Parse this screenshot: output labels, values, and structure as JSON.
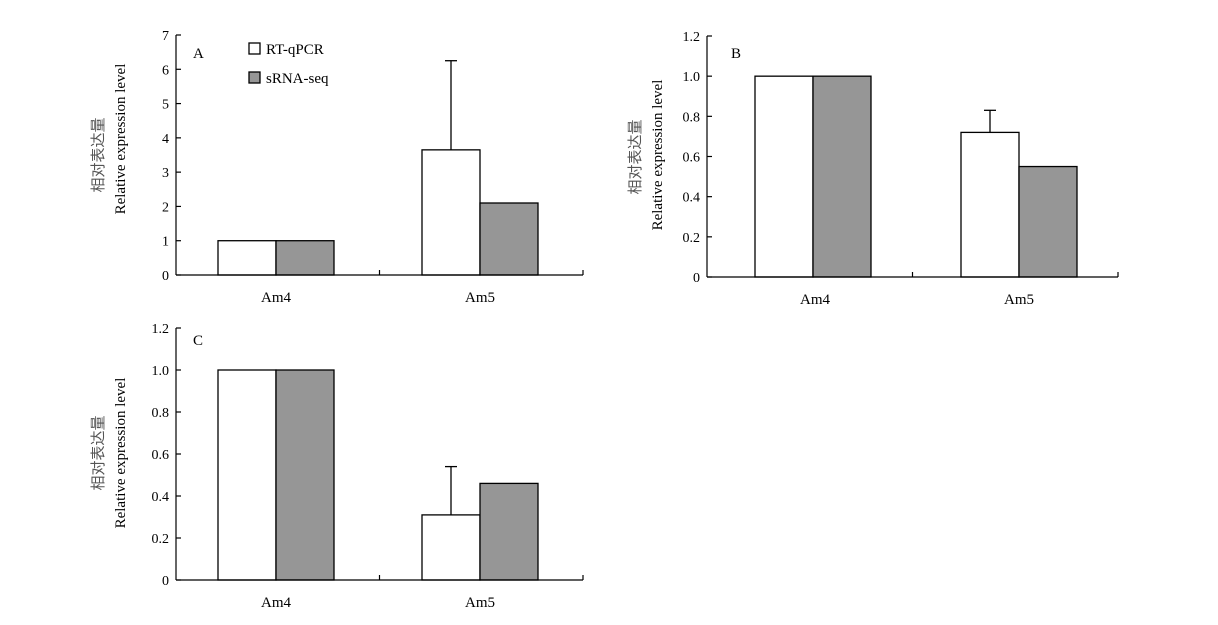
{
  "legend": {
    "items": [
      {
        "label": "RT-qPCR",
        "color": "#ffffff"
      },
      {
        "label": "sRNA-seq",
        "color": "#969696"
      }
    ]
  },
  "chart_data": [
    {
      "type": "bar",
      "panel_label": "A",
      "categories": [
        "Am4",
        "Am5"
      ],
      "series": [
        {
          "name": "RT-qPCR",
          "values": [
            1.0,
            3.65
          ],
          "error": [
            0,
            2.6
          ],
          "color": "#ffffff"
        },
        {
          "name": "sRNA-seq",
          "values": [
            1.0,
            2.1
          ],
          "error": [
            0,
            0
          ],
          "color": "#969696"
        }
      ],
      "ylabel_zh": "相对表达量",
      "ylabel": "Relative expression level",
      "ylim": [
        0,
        7
      ],
      "yticks": [
        0,
        1,
        2,
        3,
        4,
        5,
        6,
        7
      ],
      "ytick_labels": [
        "0",
        "1",
        "2",
        "3",
        "4",
        "5",
        "6",
        "7"
      ],
      "legend_position": "top-left"
    },
    {
      "type": "bar",
      "panel_label": "B",
      "categories": [
        "Am4",
        "Am5"
      ],
      "series": [
        {
          "name": "RT-qPCR",
          "values": [
            1.0,
            0.72
          ],
          "error": [
            0,
            0.11
          ],
          "color": "#ffffff"
        },
        {
          "name": "sRNA-seq",
          "values": [
            1.0,
            0.55
          ],
          "error": [
            0,
            0
          ],
          "color": "#969696"
        }
      ],
      "ylabel_zh": "相对表达量",
      "ylabel": "Relative expression level",
      "ylim": [
        0,
        1.2
      ],
      "yticks": [
        0,
        0.2,
        0.4,
        0.6,
        0.8,
        1.0,
        1.2
      ],
      "ytick_labels": [
        "0",
        "0.2",
        "0.4",
        "0.6",
        "0.8",
        "1.0",
        "1.2"
      ]
    },
    {
      "type": "bar",
      "panel_label": "C",
      "categories": [
        "Am4",
        "Am5"
      ],
      "series": [
        {
          "name": "RT-qPCR",
          "values": [
            1.0,
            0.31
          ],
          "error": [
            0,
            0.23
          ],
          "color": "#ffffff"
        },
        {
          "name": "sRNA-seq",
          "values": [
            1.0,
            0.46
          ],
          "error": [
            0,
            0
          ],
          "color": "#969696"
        }
      ],
      "ylabel_zh": "相对表达量",
      "ylabel": "Relative expression level",
      "ylim": [
        0,
        1.2
      ],
      "yticks": [
        0,
        0.2,
        0.4,
        0.6,
        0.8,
        1.0,
        1.2
      ],
      "ytick_labels": [
        "0",
        "0.2",
        "0.4",
        "0.6",
        "0.8",
        "1.0",
        "1.2"
      ]
    }
  ]
}
